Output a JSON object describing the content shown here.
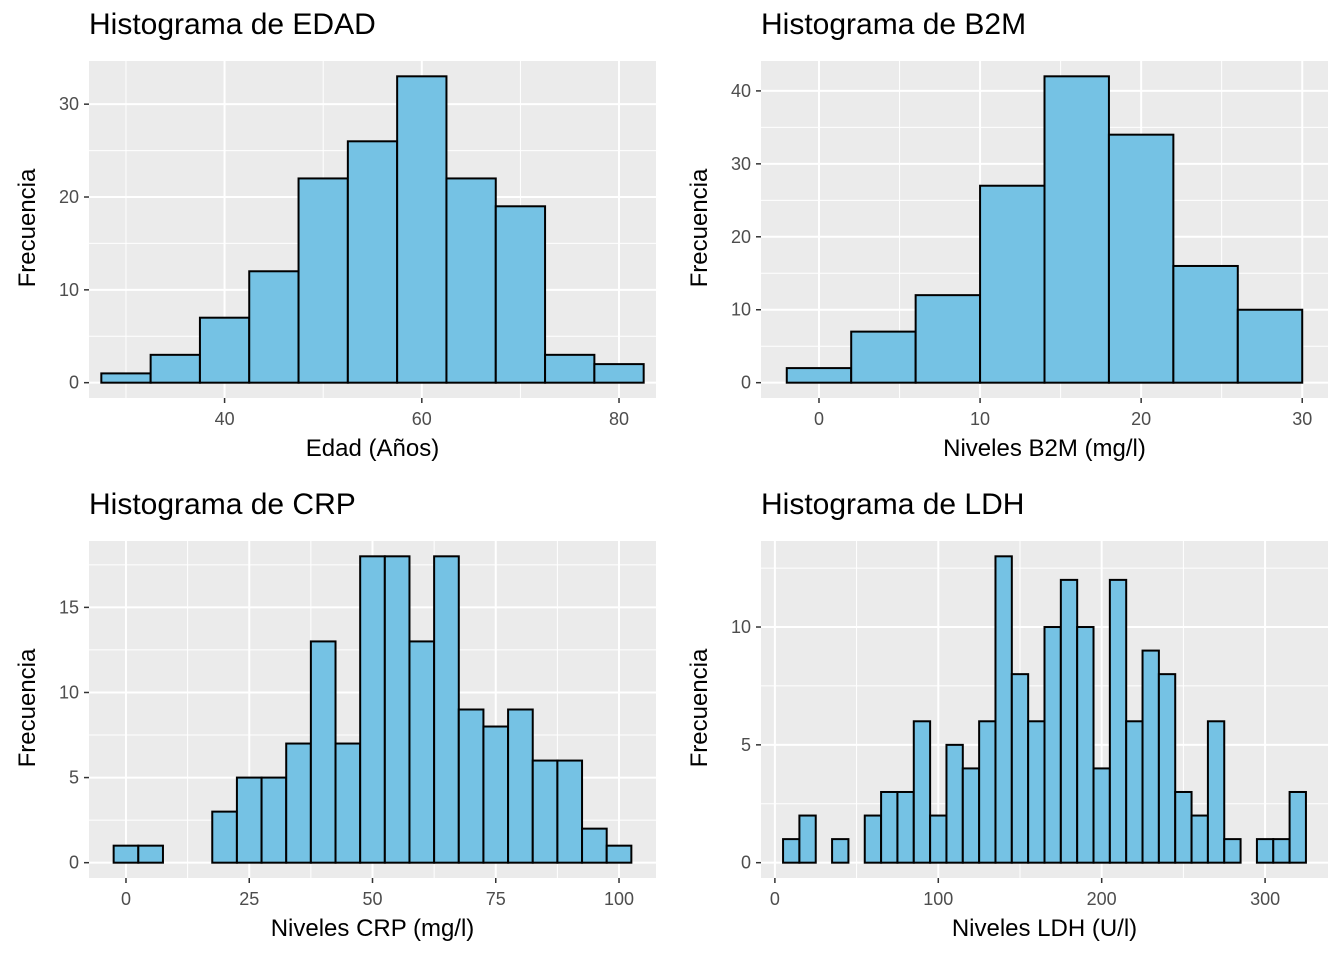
{
  "style": {
    "panel_bg": "#ebebeb",
    "grid_color": "#ffffff",
    "bar_fill": "#75c2e4",
    "bar_stroke": "#000000",
    "tick_color": "#4d4d4d"
  },
  "chart_data": [
    {
      "type": "bar",
      "title": "Histograma de EDAD",
      "xlabel": "Edad (Años)",
      "ylabel": "Frecuencia",
      "xlim": [
        26.25,
        83.75
      ],
      "ylim": [
        -1.65,
        34.65
      ],
      "xticks": [
        40,
        60,
        80
      ],
      "yticks": [
        0,
        10,
        20,
        30
      ],
      "bin_width": 5,
      "x": [
        30,
        35,
        40,
        45,
        50,
        55,
        60,
        65,
        70,
        75,
        80
      ],
      "values": [
        1,
        3,
        7,
        12,
        22,
        26,
        33,
        22,
        19,
        3,
        2
      ]
    },
    {
      "type": "bar",
      "title": "Histograma de B2M",
      "xlabel": "Niveles B2M (mg/l)",
      "ylabel": "Frecuencia",
      "xlim": [
        -3.6,
        31.6
      ],
      "ylim": [
        -2.1,
        44.1
      ],
      "xticks": [
        0,
        10,
        20,
        30
      ],
      "yticks": [
        0,
        10,
        20,
        30,
        40
      ],
      "bin_width": 4,
      "x": [
        0,
        4,
        8,
        12,
        16,
        20,
        24,
        28
      ],
      "values": [
        2,
        7,
        12,
        27,
        42,
        34,
        16,
        10
      ]
    },
    {
      "type": "bar",
      "title": "Histograma de CRP",
      "xlabel": "Niveles CRP (mg/l)",
      "ylabel": "Frecuencia",
      "xlim": [
        -7.5,
        107.5
      ],
      "ylim": [
        -0.9,
        18.9
      ],
      "xticks": [
        0,
        25,
        50,
        75,
        100
      ],
      "yticks": [
        0,
        5,
        10,
        15
      ],
      "bin_width": 5,
      "x": [
        0,
        5,
        10,
        15,
        20,
        25,
        30,
        35,
        40,
        45,
        50,
        55,
        60,
        65,
        70,
        75,
        80,
        85,
        90,
        95,
        100
      ],
      "values": [
        1,
        1,
        0,
        0,
        3,
        5,
        5,
        7,
        13,
        7,
        18,
        18,
        13,
        18,
        9,
        8,
        9,
        6,
        6,
        2,
        1
      ]
    },
    {
      "type": "bar",
      "title": "Histograma de LDH",
      "xlabel": "Niveles LDH (U/l)",
      "ylabel": "Frecuencia",
      "xlim": [
        -8.5,
        338.5
      ],
      "ylim": [
        -0.65,
        13.65
      ],
      "xticks": [
        0,
        100,
        200,
        300
      ],
      "yticks": [
        0,
        5,
        10
      ],
      "bin_width": 10,
      "x": [
        10,
        20,
        30,
        40,
        50,
        60,
        70,
        80,
        90,
        100,
        110,
        120,
        130,
        140,
        150,
        160,
        170,
        180,
        190,
        200,
        210,
        220,
        230,
        240,
        250,
        260,
        270,
        280,
        290,
        300,
        310,
        320
      ],
      "values": [
        1,
        2,
        0,
        1,
        0,
        2,
        3,
        3,
        6,
        2,
        5,
        4,
        6,
        13,
        8,
        6,
        10,
        12,
        10,
        4,
        12,
        6,
        9,
        8,
        3,
        2,
        6,
        1,
        0,
        1,
        1,
        3
      ]
    }
  ]
}
